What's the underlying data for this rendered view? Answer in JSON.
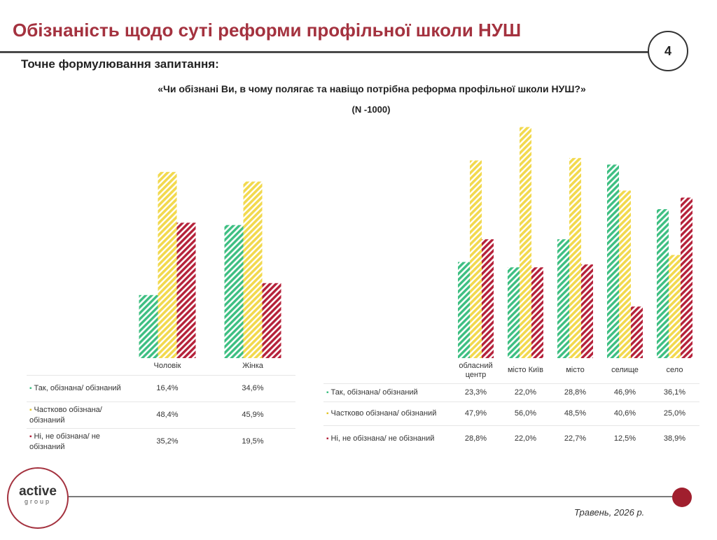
{
  "header": {
    "title": "Обізнаність щодо суті реформи профільної школи НУШ",
    "page_number": "4"
  },
  "question": {
    "heading": "Точне формулювання запитання:",
    "text": "«Чи обізнані Ви, в чому полягає та навіщо потрібна реформа профільної школи НУШ?»",
    "n": "(N -1000)"
  },
  "colors": {
    "yes": "#3dbf82",
    "partial": "#f2d94e",
    "no": "#b5213a",
    "accent": "#a4323f"
  },
  "chart_data": [
    {
      "type": "bar",
      "categories": [
        "Чоловік",
        "Жінка"
      ],
      "series": [
        {
          "name": "Так, обізнана/ обізнаний",
          "values": [
            16.4,
            34.6
          ],
          "labels": [
            "16,4%",
            "34,6%"
          ]
        },
        {
          "name": "Частково обізнана/ обізнаний",
          "values": [
            48.4,
            45.9
          ],
          "labels": [
            "48,4%",
            "45,9%"
          ]
        },
        {
          "name": "Ні, не обізнана/ не обізнаний",
          "values": [
            35.2,
            19.5
          ],
          "labels": [
            "35,2%",
            "19,5%"
          ]
        }
      ],
      "legend": "table-below",
      "grid": false
    },
    {
      "type": "bar",
      "categories": [
        "обласний центр",
        "місто Київ",
        "місто",
        "селище",
        "село"
      ],
      "series": [
        {
          "name": "Так, обізнана/ обізнаний",
          "values": [
            23.3,
            22.0,
            28.8,
            46.9,
            36.1
          ],
          "labels": [
            "23,3%",
            "22,0%",
            "28,8%",
            "46,9%",
            "36,1%"
          ]
        },
        {
          "name": "Частково обізнана/ обізнаний",
          "values": [
            47.9,
            56.0,
            48.5,
            40.6,
            25.0
          ],
          "labels": [
            "47,9%",
            "56,0%",
            "48,5%",
            "40,6%",
            "25,0%"
          ]
        },
        {
          "name": "Ні, не обізнана/ не обізнаний",
          "values": [
            28.8,
            22.0,
            22.7,
            12.5,
            38.9
          ],
          "labels": [
            "28,8%",
            "22,0%",
            "22,7%",
            "12,5%",
            "38,9%"
          ]
        }
      ],
      "legend": "table-below",
      "grid": false
    }
  ],
  "footer": {
    "logo_main": "active",
    "logo_sub": "group",
    "date": "Травень, 2026 р."
  }
}
